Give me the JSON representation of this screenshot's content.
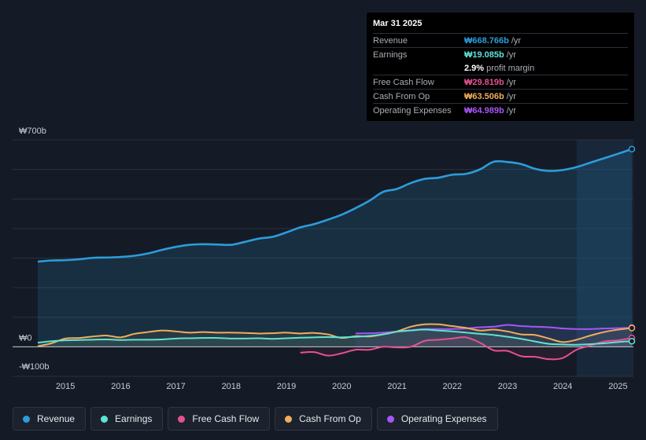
{
  "tooltip": {
    "date": "Mar 31 2025",
    "rows": [
      {
        "label": "Revenue",
        "value": "₩668.766b",
        "unit": "/yr",
        "color": "#2d9cdb"
      },
      {
        "label": "Earnings",
        "value": "₩19.085b",
        "unit": "/yr",
        "color": "#5fe3d3"
      },
      {
        "label": "",
        "value": "2.9%",
        "unit": "profit margin",
        "color": "#ffffff"
      },
      {
        "label": "Free Cash Flow",
        "value": "₩29.819b",
        "unit": "/yr",
        "color": "#e8508f"
      },
      {
        "label": "Cash From Op",
        "value": "₩63.506b",
        "unit": "/yr",
        "color": "#f0ad5b"
      },
      {
        "label": "Operating Expenses",
        "value": "₩64.989b",
        "unit": "/yr",
        "color": "#a855f7"
      }
    ]
  },
  "legend": [
    {
      "label": "Revenue",
      "color": "#2d9cdb"
    },
    {
      "label": "Earnings",
      "color": "#5fe3d3"
    },
    {
      "label": "Free Cash Flow",
      "color": "#e8508f"
    },
    {
      "label": "Cash From Op",
      "color": "#f0ad5b"
    },
    {
      "label": "Operating Expenses",
      "color": "#a855f7"
    }
  ],
  "chart_data": {
    "type": "line",
    "title": "",
    "xlabel": "",
    "ylabel": "",
    "ylim": [
      -100,
      700
    ],
    "y_tick_labels": [
      {
        "value": 700,
        "label": "₩700b"
      },
      {
        "value": 0,
        "label": "₩0"
      },
      {
        "value": -100,
        "label": "-₩100b"
      }
    ],
    "xlim": [
      2014.5,
      2025.25
    ],
    "x_ticks": [
      2015,
      2016,
      2017,
      2018,
      2019,
      2020,
      2021,
      2022,
      2023,
      2024,
      2025
    ],
    "forecast_region_start": 2024.25,
    "series": [
      {
        "name": "Revenue",
        "color": "#2d9cdb",
        "area": true,
        "x": [
          2014.5,
          2014.75,
          2015.0,
          2015.25,
          2015.5,
          2015.75,
          2016.0,
          2016.25,
          2016.5,
          2016.75,
          2017.0,
          2017.25,
          2017.5,
          2017.75,
          2018.0,
          2018.25,
          2018.5,
          2018.75,
          2019.0,
          2019.25,
          2019.5,
          2019.75,
          2020.0,
          2020.25,
          2020.5,
          2020.75,
          2021.0,
          2021.25,
          2021.5,
          2021.75,
          2022.0,
          2022.25,
          2022.5,
          2022.75,
          2023.0,
          2023.25,
          2023.5,
          2023.75,
          2024.0,
          2024.25,
          2024.5,
          2024.75,
          2025.0,
          2025.25
        ],
        "values": [
          288,
          292,
          293,
          296,
          301,
          302,
          304,
          308,
          316,
          328,
          338,
          345,
          347,
          346,
          345,
          355,
          366,
          372,
          387,
          404,
          415,
          430,
          447,
          469,
          494,
          524,
          534,
          554,
          568,
          572,
          582,
          585,
          600,
          626,
          625,
          618,
          602,
          595,
          598,
          608,
          623,
          638,
          653,
          668.766
        ]
      },
      {
        "name": "Earnings",
        "color": "#5fe3d3",
        "area": false,
        "x": [
          2014.5,
          2014.75,
          2015.0,
          2015.25,
          2015.5,
          2015.75,
          2016.0,
          2016.25,
          2016.5,
          2016.75,
          2017.0,
          2017.25,
          2017.5,
          2017.75,
          2018.0,
          2018.25,
          2018.5,
          2018.75,
          2019.0,
          2019.25,
          2019.5,
          2019.75,
          2020.0,
          2020.25,
          2020.5,
          2020.75,
          2021.0,
          2021.25,
          2021.5,
          2021.75,
          2022.0,
          2022.25,
          2022.5,
          2022.75,
          2023.0,
          2023.25,
          2023.5,
          2023.75,
          2024.0,
          2024.25,
          2024.5,
          2024.75,
          2025.0,
          2025.25
        ],
        "values": [
          14,
          19,
          22,
          23,
          24,
          25,
          23,
          24,
          24,
          25,
          28,
          29,
          30,
          30,
          28,
          28,
          29,
          27,
          29,
          31,
          32,
          33,
          32,
          34,
          37,
          42,
          51,
          55,
          58,
          55,
          52,
          48,
          44,
          40,
          34,
          27,
          18,
          10,
          8,
          7,
          9,
          12,
          16,
          19.085
        ]
      },
      {
        "name": "Free Cash Flow",
        "color": "#e8508f",
        "area": false,
        "x": [
          2019.25,
          2019.5,
          2019.75,
          2020.0,
          2020.25,
          2020.5,
          2020.75,
          2021.0,
          2021.25,
          2021.5,
          2021.75,
          2022.0,
          2022.25,
          2022.5,
          2022.75,
          2023.0,
          2023.25,
          2023.5,
          2023.75,
          2024.0,
          2024.25,
          2024.5,
          2024.75,
          2025.0,
          2025.25
        ],
        "values": [
          -20,
          -18,
          -30,
          -22,
          -10,
          -10,
          0,
          -2,
          0,
          20,
          24,
          28,
          32,
          14,
          -12,
          -14,
          -32,
          -34,
          -42,
          -38,
          -10,
          4,
          18,
          22,
          29.819
        ]
      },
      {
        "name": "Cash From Op",
        "color": "#f0ad5b",
        "area": false,
        "x": [
          2014.5,
          2014.75,
          2015.0,
          2015.25,
          2015.5,
          2015.75,
          2016.0,
          2016.25,
          2016.5,
          2016.75,
          2017.0,
          2017.25,
          2017.5,
          2017.75,
          2018.0,
          2018.25,
          2018.5,
          2018.75,
          2019.0,
          2019.25,
          2019.5,
          2019.75,
          2020.0,
          2020.25,
          2020.5,
          2020.75,
          2021.0,
          2021.25,
          2021.5,
          2021.75,
          2022.0,
          2022.25,
          2022.5,
          2022.75,
          2023.0,
          2023.25,
          2023.5,
          2023.75,
          2024.0,
          2024.25,
          2024.5,
          2024.75,
          2025.0,
          2025.25
        ],
        "values": [
          2,
          12,
          28,
          30,
          35,
          38,
          32,
          44,
          50,
          55,
          52,
          48,
          50,
          48,
          48,
          47,
          45,
          46,
          48,
          45,
          47,
          42,
          30,
          36,
          35,
          42,
          52,
          68,
          76,
          76,
          70,
          64,
          55,
          58,
          52,
          42,
          40,
          28,
          16,
          24,
          38,
          50,
          58,
          63.506
        ]
      },
      {
        "name": "Operating Expenses",
        "color": "#a855f7",
        "area": false,
        "x": [
          2020.25,
          2020.5,
          2020.75,
          2021.0,
          2021.25,
          2021.5,
          2021.75,
          2022.0,
          2022.25,
          2022.5,
          2022.75,
          2023.0,
          2023.25,
          2023.5,
          2023.75,
          2024.0,
          2024.25,
          2024.5,
          2024.75,
          2025.0,
          2025.25
        ],
        "values": [
          45,
          46,
          48,
          52,
          56,
          60,
          60,
          60,
          62,
          66,
          68,
          74,
          70,
          68,
          66,
          62,
          60,
          60,
          62,
          63,
          64.989
        ]
      }
    ]
  }
}
